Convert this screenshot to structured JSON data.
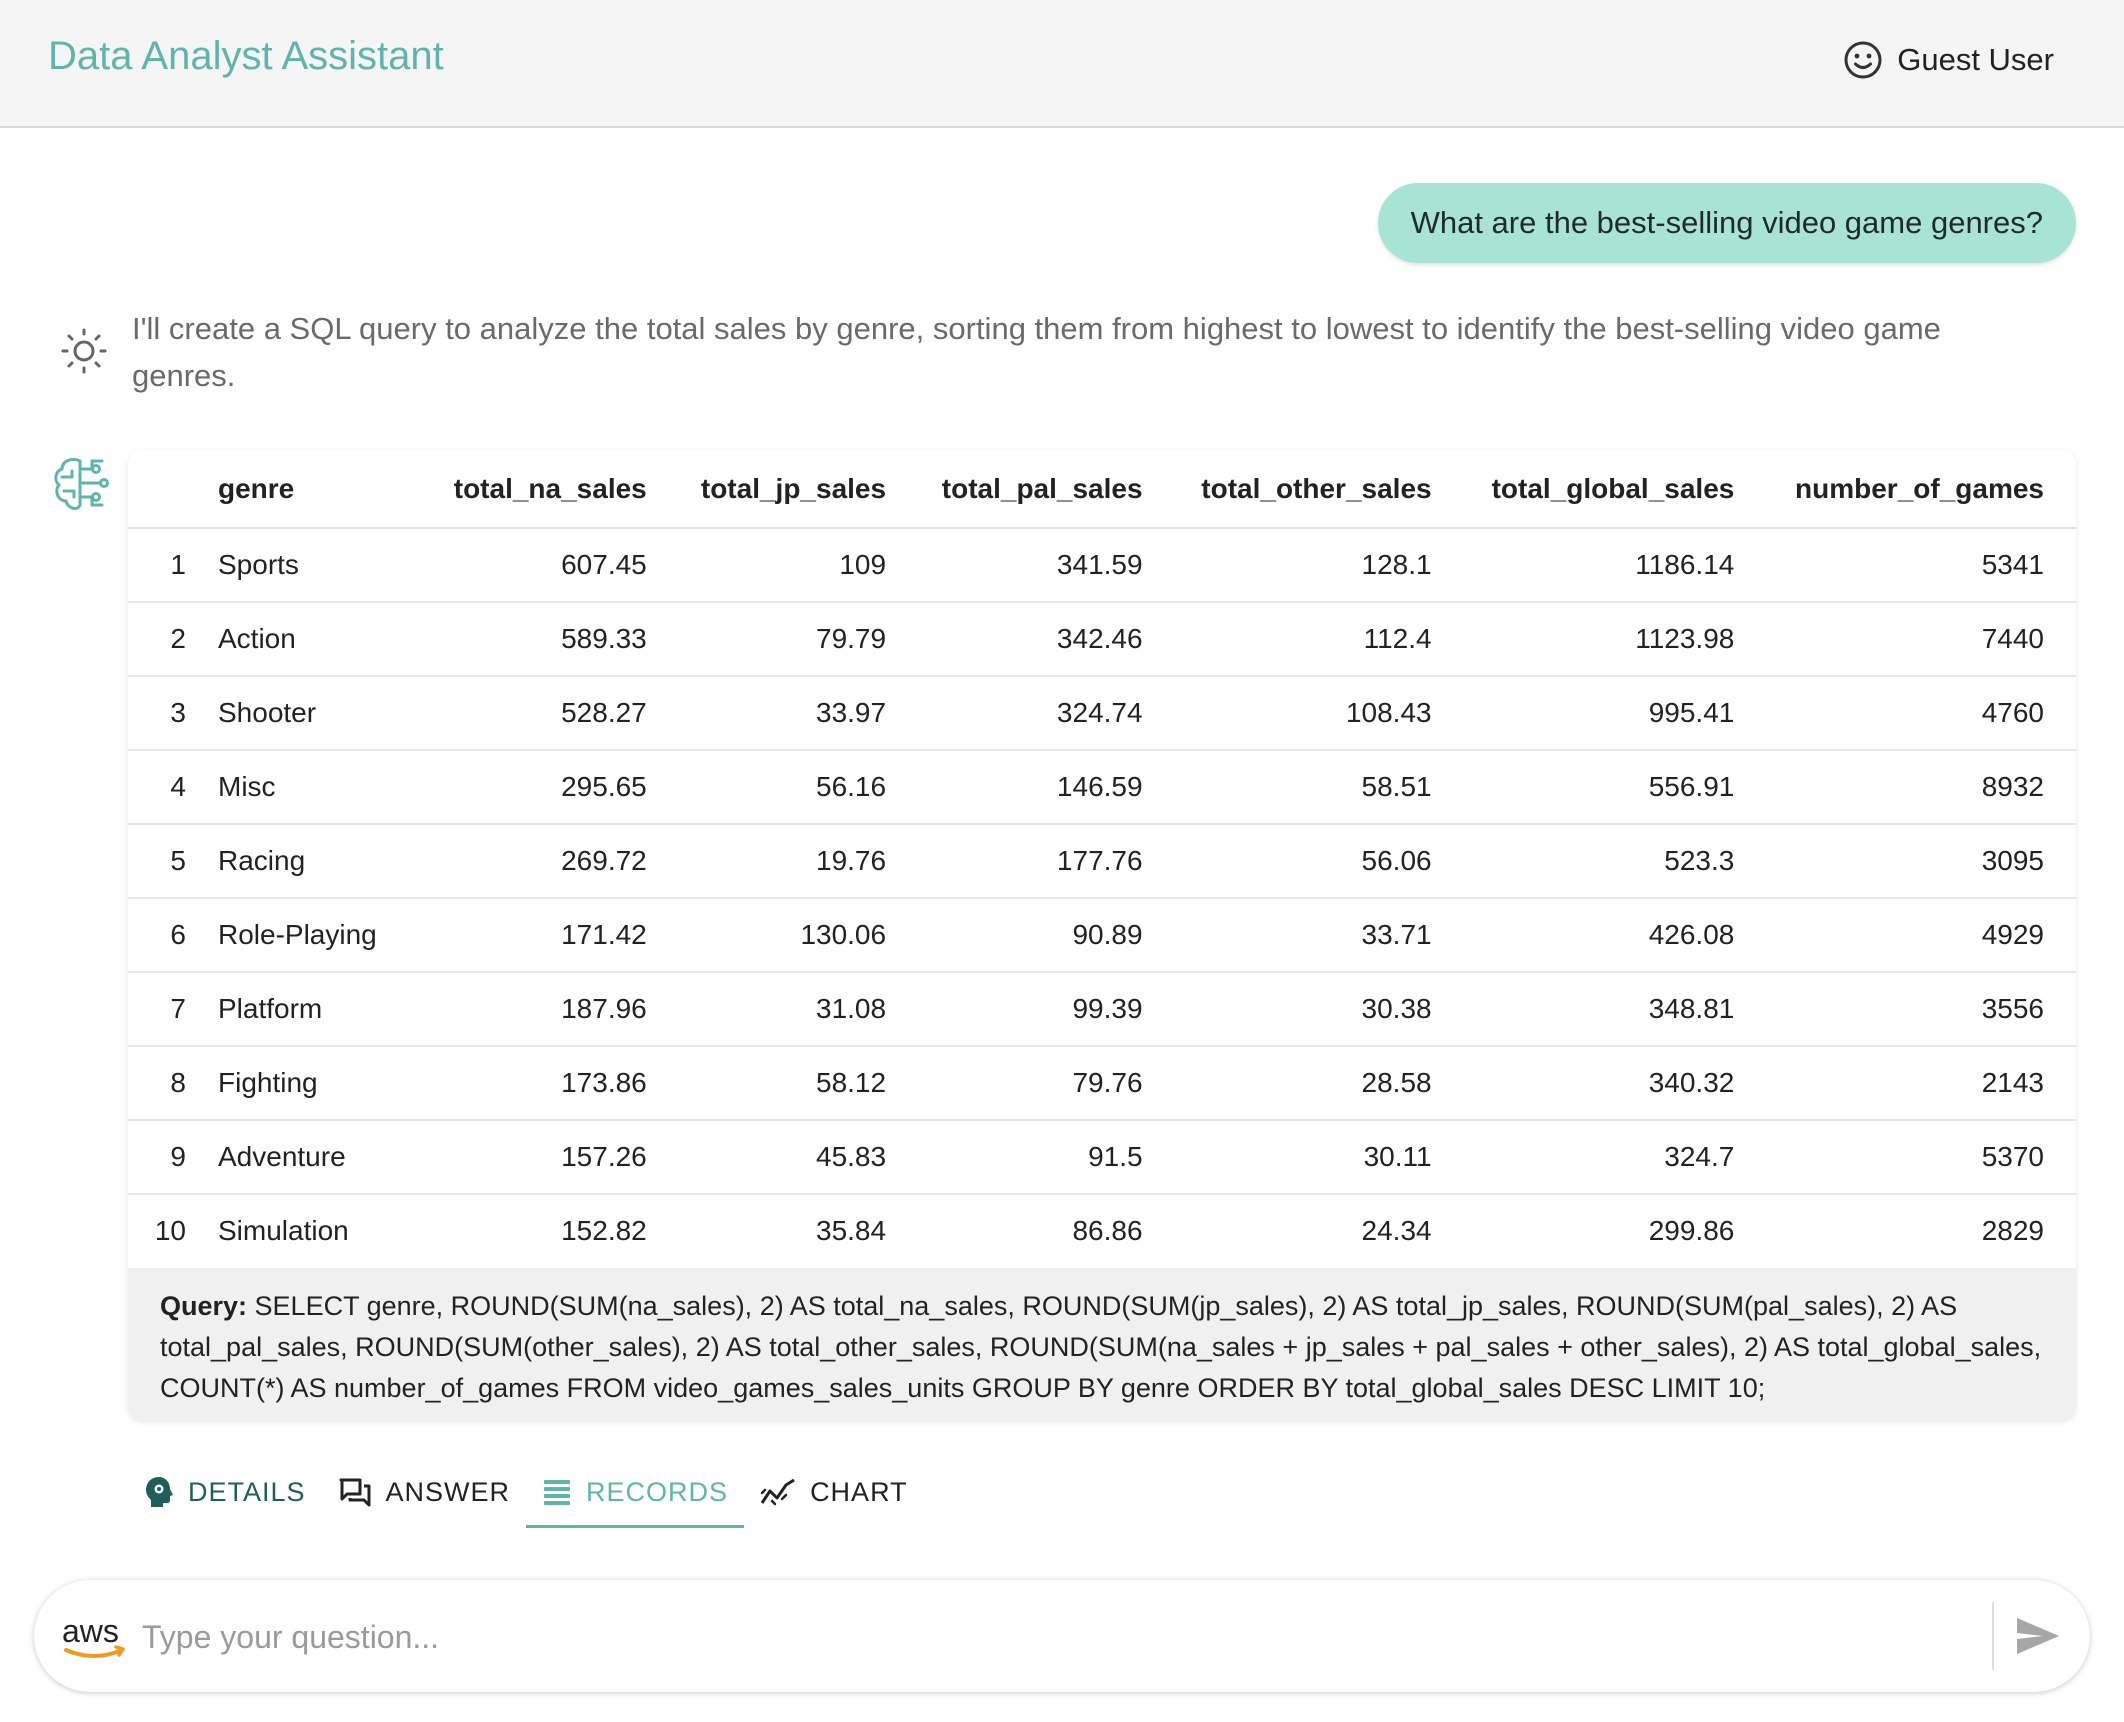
{
  "header": {
    "title": "Data Analyst Assistant",
    "user_name": "Guest User",
    "user_icon": "smiley-icon"
  },
  "conversation": {
    "question": "What are the best-selling video game genres?",
    "answer_text": "I'll create a SQL query to analyze the total sales by genre, sorting them from highest to lowest to identify the best-selling video game genres.",
    "answer_icon": "sun-icon",
    "records_icon": "brain-circuit-icon"
  },
  "records": {
    "columns": [
      "",
      "genre",
      "total_na_sales",
      "total_jp_sales",
      "total_pal_sales",
      "total_other_sales",
      "total_global_sales",
      "number_of_games"
    ],
    "rows": [
      [
        "1",
        "Sports",
        "607.45",
        "109",
        "341.59",
        "128.1",
        "1186.14",
        "5341"
      ],
      [
        "2",
        "Action",
        "589.33",
        "79.79",
        "342.46",
        "112.4",
        "1123.98",
        "7440"
      ],
      [
        "3",
        "Shooter",
        "528.27",
        "33.97",
        "324.74",
        "108.43",
        "995.41",
        "4760"
      ],
      [
        "4",
        "Misc",
        "295.65",
        "56.16",
        "146.59",
        "58.51",
        "556.91",
        "8932"
      ],
      [
        "5",
        "Racing",
        "269.72",
        "19.76",
        "177.76",
        "56.06",
        "523.3",
        "3095"
      ],
      [
        "6",
        "Role-Playing",
        "171.42",
        "130.06",
        "90.89",
        "33.71",
        "426.08",
        "4929"
      ],
      [
        "7",
        "Platform",
        "187.96",
        "31.08",
        "99.39",
        "30.38",
        "348.81",
        "3556"
      ],
      [
        "8",
        "Fighting",
        "173.86",
        "58.12",
        "79.76",
        "28.58",
        "340.32",
        "2143"
      ],
      [
        "9",
        "Adventure",
        "157.26",
        "45.83",
        "91.5",
        "30.11",
        "324.7",
        "5370"
      ],
      [
        "10",
        "Simulation",
        "152.82",
        "35.84",
        "86.86",
        "24.34",
        "299.86",
        "2829"
      ]
    ],
    "query_label": "Query:",
    "query_text": " SELECT genre, ROUND(SUM(na_sales), 2) AS total_na_sales, ROUND(SUM(jp_sales), 2) AS total_jp_sales, ROUND(SUM(pal_sales), 2) AS total_pal_sales, ROUND(SUM(other_sales), 2) AS total_other_sales, ROUND(SUM(na_sales + jp_sales + pal_sales + other_sales), 2) AS total_global_sales, COUNT(*) AS number_of_games FROM video_games_sales_units GROUP BY genre ORDER BY total_global_sales DESC LIMIT 10;"
  },
  "tabs": [
    {
      "label": "DETAILS",
      "icon": "psychology-icon",
      "active": false
    },
    {
      "label": "ANSWER",
      "icon": "chat-bubbles-icon",
      "active": false
    },
    {
      "label": "RECORDS",
      "icon": "list-lines-icon",
      "active": true
    },
    {
      "label": "CHART",
      "icon": "line-chart-icon",
      "active": false
    }
  ],
  "input": {
    "placeholder": "Type your question...",
    "value": "",
    "logo_text": "aws",
    "send_icon": "send-icon"
  },
  "colors": {
    "accent": "#5fb5aa",
    "bubble": "#a8e4d6",
    "details_tab": "#1f5f5a",
    "header_bg": "#f5f5f5"
  }
}
